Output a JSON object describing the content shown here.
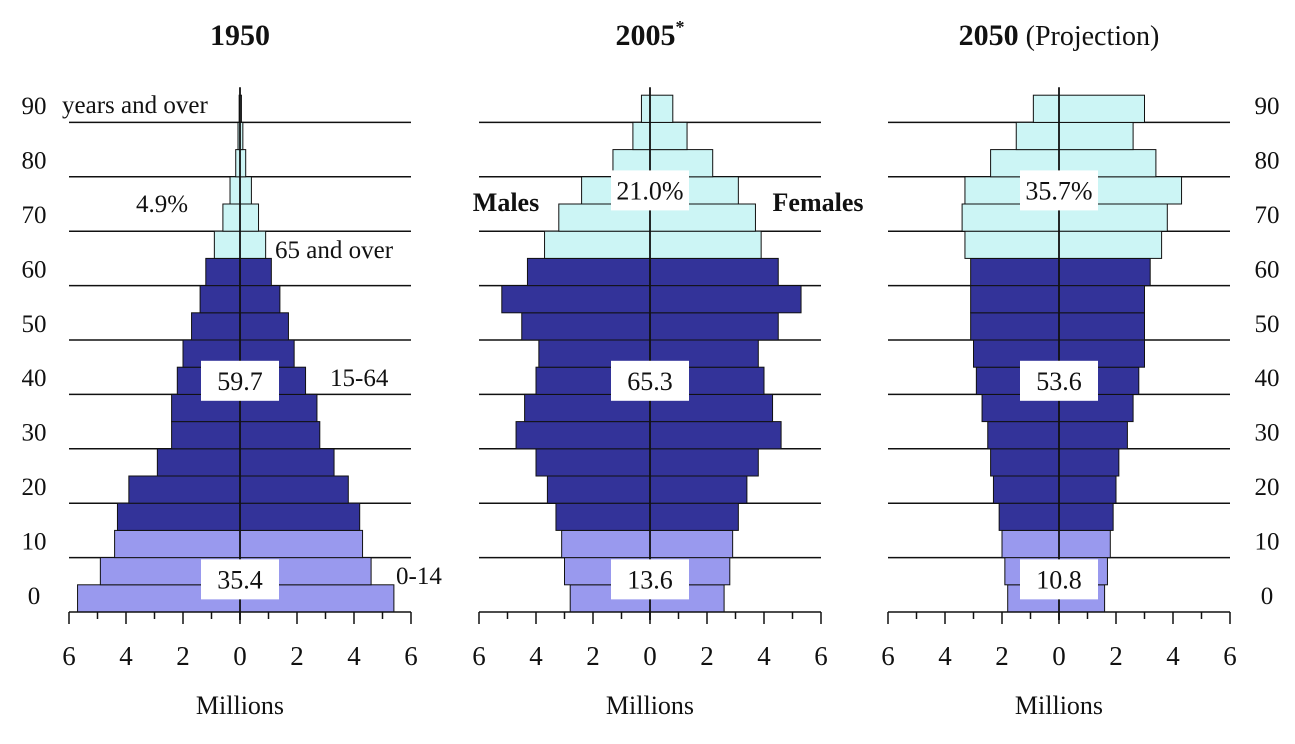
{
  "colors": {
    "elderly": "#ccf5f5",
    "working": "#333399",
    "young": "#9999ee",
    "line": "#111111",
    "box_bg": "#ffffff"
  },
  "labels": {
    "males": "Males",
    "females": "Females",
    "top_age": "years and over",
    "band_65": "65 and over",
    "band_15_64": "15-64",
    "band_0_14": "0-14",
    "xlabel": "Millions"
  },
  "chart_data": [
    {
      "type": "bar",
      "title": "1950",
      "title_suffix": "",
      "title_superscript": "",
      "xlabel": "Millions",
      "xlim": [
        -6,
        6
      ],
      "x_ticks": [
        "6",
        "4",
        "2",
        "0",
        "2",
        "4",
        "6"
      ],
      "age_tick_labels": [
        "0",
        "10",
        "20",
        "30",
        "40",
        "50",
        "60",
        "70",
        "80",
        "90"
      ],
      "age_groups": [
        "0-4",
        "5-9",
        "10-14",
        "15-19",
        "20-24",
        "25-29",
        "30-34",
        "35-39",
        "40-44",
        "45-49",
        "50-54",
        "55-59",
        "60-64",
        "65-69",
        "70-74",
        "75-79",
        "80-84",
        "85-89",
        "90+"
      ],
      "males": [
        5.7,
        4.9,
        4.4,
        4.3,
        3.9,
        2.9,
        2.4,
        2.4,
        2.2,
        2.0,
        1.7,
        1.4,
        1.2,
        0.9,
        0.6,
        0.35,
        0.15,
        0.07,
        0.03
      ],
      "females": [
        5.4,
        4.6,
        4.3,
        4.2,
        3.8,
        3.3,
        2.8,
        2.7,
        2.3,
        1.9,
        1.7,
        1.4,
        1.1,
        0.9,
        0.65,
        0.4,
        0.2,
        0.1,
        0.05
      ],
      "annotations": {
        "elderly": "4.9%",
        "working": "59.7",
        "young": "35.4"
      }
    },
    {
      "type": "bar",
      "title": "2005",
      "title_suffix": "",
      "title_superscript": "*",
      "xlabel": "Millions",
      "xlim": [
        -6,
        6
      ],
      "x_ticks": [
        "6",
        "4",
        "2",
        "0",
        "2",
        "4",
        "6"
      ],
      "age_groups": [
        "0-4",
        "5-9",
        "10-14",
        "15-19",
        "20-24",
        "25-29",
        "30-34",
        "35-39",
        "40-44",
        "45-49",
        "50-54",
        "55-59",
        "60-64",
        "65-69",
        "70-74",
        "75-79",
        "80-84",
        "85-89",
        "90+"
      ],
      "males": [
        2.8,
        3.0,
        3.1,
        3.3,
        3.6,
        4.0,
        4.7,
        4.4,
        4.0,
        3.9,
        4.5,
        5.2,
        4.3,
        3.7,
        3.2,
        2.4,
        1.3,
        0.6,
        0.3
      ],
      "females": [
        2.6,
        2.8,
        2.9,
        3.1,
        3.4,
        3.8,
        4.6,
        4.3,
        4.0,
        3.8,
        4.5,
        5.3,
        4.5,
        3.9,
        3.7,
        3.1,
        2.2,
        1.3,
        0.8
      ],
      "annotations": {
        "elderly": "21.0%",
        "working": "65.3",
        "young": "13.6"
      }
    },
    {
      "type": "bar",
      "title": "2050",
      "title_suffix": " (Projection)",
      "title_superscript": "",
      "xlabel": "Millions",
      "xlim": [
        -6,
        6
      ],
      "x_ticks": [
        "6",
        "4",
        "2",
        "0",
        "2",
        "4",
        "6"
      ],
      "age_tick_labels": [
        "0",
        "10",
        "20",
        "30",
        "40",
        "50",
        "60",
        "70",
        "80",
        "90"
      ],
      "age_groups": [
        "0-4",
        "5-9",
        "10-14",
        "15-19",
        "20-24",
        "25-29",
        "30-34",
        "35-39",
        "40-44",
        "45-49",
        "50-54",
        "55-59",
        "60-64",
        "65-69",
        "70-74",
        "75-79",
        "80-84",
        "85-89",
        "90+"
      ],
      "males": [
        1.8,
        1.9,
        2.0,
        2.1,
        2.3,
        2.4,
        2.5,
        2.7,
        2.9,
        3.0,
        3.1,
        3.1,
        3.1,
        3.3,
        3.4,
        3.3,
        2.4,
        1.5,
        0.9
      ],
      "females": [
        1.6,
        1.7,
        1.8,
        1.9,
        2.0,
        2.1,
        2.4,
        2.6,
        2.8,
        3.0,
        3.0,
        3.0,
        3.2,
        3.6,
        3.8,
        4.3,
        3.4,
        2.6,
        3.0
      ],
      "annotations": {
        "elderly": "35.7%",
        "working": "53.6",
        "young": "10.8"
      }
    }
  ]
}
